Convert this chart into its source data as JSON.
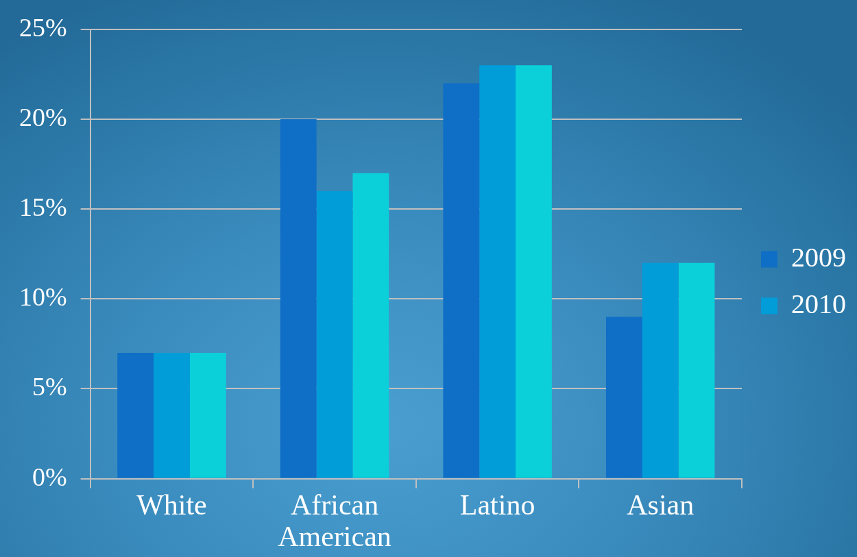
{
  "chart_data": {
    "type": "bar",
    "categories": [
      "White",
      "African American",
      "Latino",
      "Asian"
    ],
    "series": [
      {
        "name": "2009",
        "color": "#0f6fc6",
        "values": [
          7,
          20,
          22,
          9
        ]
      },
      {
        "name": "2010",
        "color": "#009dd9",
        "values": [
          7,
          16,
          23,
          12
        ]
      },
      {
        "color": "#0bd0d9",
        "values": [
          7,
          17,
          23,
          12
        ]
      }
    ],
    "ylim": [
      0,
      25
    ],
    "yticks": [
      {
        "value": 0,
        "label": "0%"
      },
      {
        "value": 5,
        "label": "5%"
      },
      {
        "value": 10,
        "label": "10%"
      },
      {
        "value": 15,
        "label": "15%"
      },
      {
        "value": 20,
        "label": "20%"
      },
      {
        "value": 25,
        "label": "25%"
      }
    ],
    "grid": "y",
    "legend": "right"
  }
}
